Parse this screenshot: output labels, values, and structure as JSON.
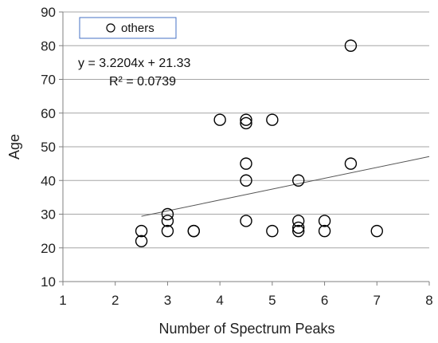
{
  "chart_data": {
    "type": "scatter",
    "xlabel": "Number of Spectrum Peaks",
    "ylabel": "Age",
    "xlim": [
      1,
      8
    ],
    "ylim": [
      10,
      90
    ],
    "xticks": [
      "1",
      "2",
      "3",
      "4",
      "5",
      "6",
      "7",
      "8"
    ],
    "yticks": [
      "10",
      "20",
      "30",
      "40",
      "50",
      "60",
      "70",
      "80",
      "90"
    ],
    "grid": "horizontal",
    "legend": {
      "position": "top-left",
      "entries": [
        "others"
      ]
    },
    "series": [
      {
        "name": "others",
        "marker": "hollow-circle",
        "points": [
          [
            2.5,
            25
          ],
          [
            2.5,
            22
          ],
          [
            3,
            30
          ],
          [
            3,
            28
          ],
          [
            3,
            25
          ],
          [
            3.5,
            25
          ],
          [
            3.5,
            25
          ],
          [
            4,
            58
          ],
          [
            4.5,
            58
          ],
          [
            4.5,
            57
          ],
          [
            4.5,
            45
          ],
          [
            4.5,
            40
          ],
          [
            4.5,
            28
          ],
          [
            5,
            58
          ],
          [
            5,
            25
          ],
          [
            5.5,
            40
          ],
          [
            5.5,
            28
          ],
          [
            5.5,
            26
          ],
          [
            5.5,
            25
          ],
          [
            6,
            28
          ],
          [
            6,
            25
          ],
          [
            6.5,
            80
          ],
          [
            6.5,
            45
          ],
          [
            7,
            25
          ]
        ]
      }
    ],
    "trendline": {
      "slope": 3.2204,
      "intercept": 21.33,
      "x_range": [
        2.5,
        8
      ],
      "equation": "y = 3.2204x + 21.33",
      "r2": "R² = 0.0739"
    }
  },
  "colors": {
    "marker_stroke": "#000000",
    "trendline": "#555555",
    "grid": "#a6a6a6",
    "axis": "#7f7f7f",
    "legend_border": "#4472c4"
  }
}
